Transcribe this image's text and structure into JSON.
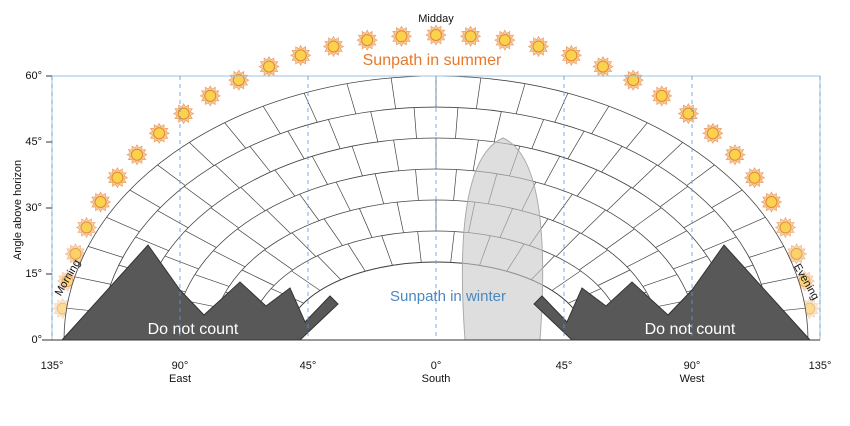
{
  "diagram": {
    "axis_label": "Angle above horizon",
    "y_ticks": [
      {
        "value": 0,
        "label": "0°"
      },
      {
        "value": 15,
        "label": "15°"
      },
      {
        "value": 30,
        "label": "30°"
      },
      {
        "value": 45,
        "label": "45°"
      },
      {
        "value": 60,
        "label": "60°"
      }
    ],
    "x_ticks": [
      {
        "value": -135,
        "label": "135°"
      },
      {
        "value": -90,
        "label": "90°"
      },
      {
        "value": -45,
        "label": "45°"
      },
      {
        "value": 0,
        "label": "0°"
      },
      {
        "value": 45,
        "label": "45°"
      },
      {
        "value": 90,
        "label": "90°"
      },
      {
        "value": 135,
        "label": "135°"
      }
    ],
    "directions": [
      {
        "value": -90,
        "label": "East"
      },
      {
        "value": 0,
        "label": "South"
      },
      {
        "value": 90,
        "label": "West"
      }
    ],
    "midday": "Midday",
    "summer": "Sunpath in summer",
    "winter": "Sunpath in winter",
    "morning": "Morning",
    "evening": "Evening",
    "excluded": [
      "Do not count",
      "Do not count"
    ]
  }
}
